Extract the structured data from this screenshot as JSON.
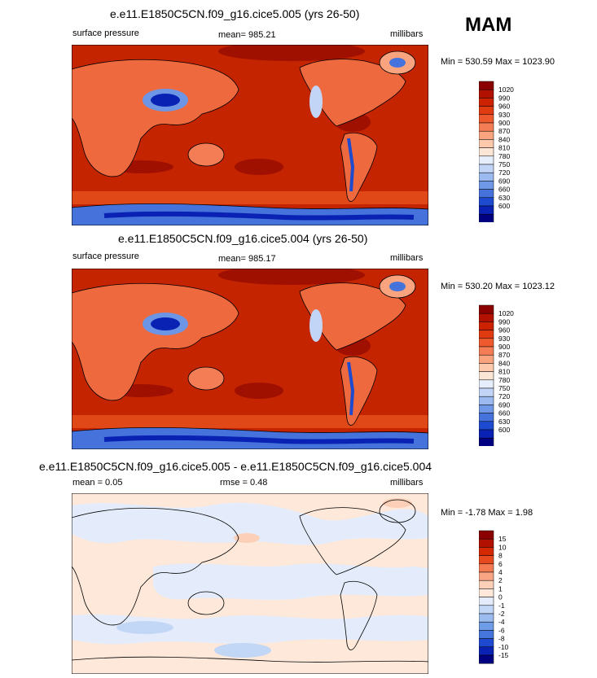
{
  "season": "MAM",
  "panels": [
    {
      "title": "e.e11.E1850C5CN.f09_g16.cice5.005 (yrs 26-50)",
      "left_label": "surface pressure",
      "center_label": "mean= 985.21",
      "right_label": "millibars",
      "minmax": "Min = 530.59 Max = 1023.90"
    },
    {
      "title": "e.e11.E1850C5CN.f09_g16.cice5.004 (yrs 26-50)",
      "left_label": "surface pressure",
      "center_label": "mean= 985.17",
      "right_label": "millibars",
      "minmax": "Min = 530.20 Max = 1023.12"
    },
    {
      "title": "e.e11.E1850C5CN.f09_g16.cice5.005 - e.e11.E1850C5CN.f09_g16.cice5.004",
      "left_label": "mean =   0.05",
      "center_label": "rmse =   0.48",
      "right_label": "millibars",
      "minmax": "Min =  -1.78 Max =   1.98"
    }
  ],
  "colorbars": {
    "absolute": {
      "labels": [
        "1020",
        "990",
        "960",
        "930",
        "900",
        "870",
        "840",
        "810",
        "780",
        "750",
        "720",
        "690",
        "660",
        "630",
        "600"
      ],
      "colors": [
        "#8b0000",
        "#b21000",
        "#cc2200",
        "#e03a10",
        "#ee5a2e",
        "#f57d55",
        "#f9a47f",
        "#fcc9ad",
        "#fbe6d6",
        "#e6eefc",
        "#c2d5f7",
        "#9cbaf0",
        "#6f98e6",
        "#4572db",
        "#1e4ad0",
        "#0a22b4",
        "#000080"
      ]
    },
    "difference": {
      "labels": [
        "15",
        "10",
        "8",
        "6",
        "4",
        "2",
        "1",
        "0",
        "-1",
        "-2",
        "-4",
        "-6",
        "-8",
        "-10",
        "-15"
      ],
      "colors": [
        "#8b0000",
        "#b21000",
        "#d42800",
        "#e84a20",
        "#f47a52",
        "#f9a584",
        "#fcd0b8",
        "#fde8da",
        "#e4ecfb",
        "#c2d6f6",
        "#9cbcf0",
        "#6f9ce6",
        "#4676dc",
        "#1e4ad0",
        "#0a22b4",
        "#000080"
      ]
    }
  }
}
